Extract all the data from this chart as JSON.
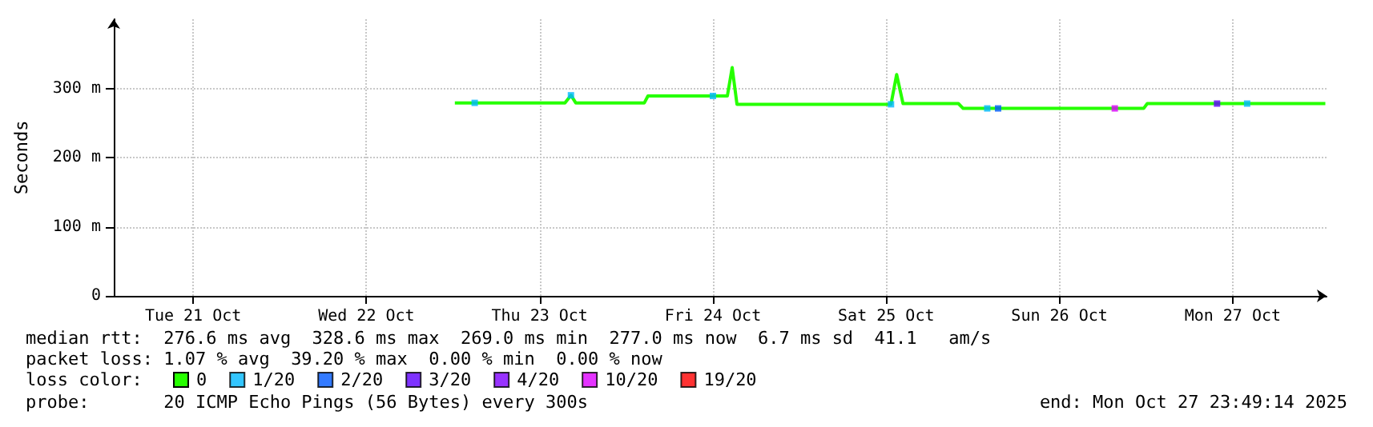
{
  "chart_data": {
    "type": "line",
    "ylabel": "Seconds",
    "legend_title": "loss color:",
    "xlim": [
      "2025-10-21T01:00",
      "2025-10-28T01:00"
    ],
    "xticks": [
      {
        "value": "2025-10-21T12:00",
        "label": "Tue 21 Oct"
      },
      {
        "value": "2025-10-22T12:00",
        "label": "Wed 22 Oct"
      },
      {
        "value": "2025-10-23T12:00",
        "label": "Thu 23 Oct"
      },
      {
        "value": "2025-10-24T12:00",
        "label": "Fri 24 Oct"
      },
      {
        "value": "2025-10-25T12:00",
        "label": "Sat 25 Oct"
      },
      {
        "value": "2025-10-26T12:00",
        "label": "Sun 26 Oct"
      },
      {
        "value": "2025-10-27T12:00",
        "label": "Mon 27 Oct"
      }
    ],
    "ylim": [
      0,
      400
    ],
    "yticks": [
      0,
      {
        "value": 100,
        "label": "100 m"
      },
      {
        "value": 200,
        "label": "200 m"
      },
      {
        "value": 300,
        "label": "300 m"
      }
    ],
    "grid": true,
    "legend": "bottom",
    "marker": "none",
    "line_style": "solid",
    "series": [
      {
        "name": "0",
        "color": "#26ff00",
        "x": [
          "2025-10-23T00:15",
          "2025-10-23T15:30",
          "2025-10-23T16:20",
          "2025-10-23T17:00",
          "2025-10-24T02:30",
          "2025-10-24T03:00",
          "2025-10-24T14:00",
          "2025-10-24T14:40",
          "2025-10-24T15:20",
          "2025-10-24T16:00",
          "2025-10-25T12:40",
          "2025-10-25T13:27",
          "2025-10-25T14:20",
          "2025-10-25T22:00",
          "2025-10-25T22:40",
          "2025-10-26T23:40",
          "2025-10-27T00:10",
          "2025-10-28T00:50"
        ],
        "values": [
          279,
          279,
          290,
          279,
          279,
          289,
          289,
          330,
          277,
          277,
          277,
          320,
          278,
          278,
          271,
          271,
          278,
          278
        ]
      },
      {
        "name": "1/20",
        "color": "#00b8ff",
        "type": "scatter",
        "marker": "square",
        "x": [
          "2025-10-23T03:00",
          "2025-10-23T16:20",
          "2025-10-24T12:00",
          "2025-10-25T12:40",
          "2025-10-26T02:00",
          "2025-10-27T14:00"
        ],
        "values": [
          279,
          290,
          289,
          277,
          271,
          278
        ]
      },
      {
        "name": "2/20",
        "color": "#0059ff",
        "type": "scatter",
        "marker": "square",
        "x": [
          "2025-10-26T03:30"
        ],
        "values": [
          271
        ]
      },
      {
        "name": "3/20",
        "color": "#5e00ff",
        "type": "scatter",
        "marker": "square",
        "x": [
          "2025-10-27T09:50"
        ],
        "values": [
          278
        ]
      },
      {
        "name": "4/20",
        "color": "#7e00ff",
        "type": "scatter",
        "marker": "square"
      },
      {
        "name": "10/20",
        "color": "#dd00ff",
        "type": "scatter",
        "marker": "square",
        "x": [
          "2025-10-26T19:40"
        ],
        "values": [
          271
        ]
      },
      {
        "name": "19/20",
        "color": "#ff0000",
        "type": "scatter",
        "marker": "square"
      }
    ],
    "annotations": [
      "median rtt:  276.6 ms avg  328.6 ms max  269.0 ms min  277.0 ms now  6.7 ms sd  41.1   am/s",
      "packet loss: 1.07 % avg  39.20 % max  0.00 % min  0.00 % now",
      "probe:       20 ICMP Echo Pings (56 Bytes) every 300s",
      "end: Mon Oct 27 23:49:14 2025"
    ]
  }
}
